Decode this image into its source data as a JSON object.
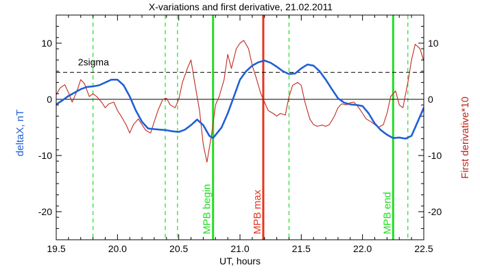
{
  "chart_data": {
    "type": "line",
    "title": "X-variations and first derivative, 21.02.2011",
    "xlabel": "UT, hours",
    "ylabel": "deltaX, nT",
    "y2label": "First derivative*10",
    "xlim": [
      19.5,
      22.5
    ],
    "ylim": [
      -25,
      15
    ],
    "x_ticks": [
      19.5,
      20.0,
      20.5,
      21.0,
      21.5,
      22.0,
      22.5
    ],
    "x_tick_labels": [
      "19.5",
      "20.0",
      "20.5",
      "21.0",
      "21.5",
      "22.0",
      "22.5"
    ],
    "y_ticks": [
      -20,
      -10,
      0,
      10
    ],
    "y_tick_labels": [
      "-20",
      "-10",
      "0",
      "10"
    ],
    "grid": false,
    "colors": {
      "deltaX": "#1f5fd6",
      "derivative": "#c0281b",
      "green_marker": "#22dd22",
      "red_marker": "#e8331c"
    },
    "sigma_level": {
      "label": "2sigma",
      "value": 4.8
    },
    "zero_line": 0,
    "series": [
      {
        "name": "deltaX, nT",
        "role": "deltaX",
        "x": [
          19.5,
          19.55,
          19.6,
          19.65,
          19.7,
          19.75,
          19.8,
          19.85,
          19.9,
          19.95,
          20.0,
          20.05,
          20.1,
          20.15,
          20.2,
          20.25,
          20.3,
          20.35,
          20.4,
          20.45,
          20.5,
          20.55,
          20.6,
          20.65,
          20.7,
          20.75,
          20.78,
          20.85,
          20.9,
          20.95,
          21.0,
          21.05,
          21.1,
          21.15,
          21.2,
          21.25,
          21.3,
          21.35,
          21.4,
          21.45,
          21.5,
          21.55,
          21.6,
          21.65,
          21.7,
          21.75,
          21.8,
          21.85,
          21.9,
          21.95,
          22.0,
          22.05,
          22.1,
          22.15,
          22.2,
          22.25,
          22.3,
          22.35,
          22.4,
          22.45,
          22.5
        ],
        "y": [
          -0.9,
          -0.2,
          0.6,
          1.2,
          1.8,
          2.2,
          2.3,
          2.5,
          3.0,
          3.5,
          3.5,
          2.5,
          0.5,
          -2.0,
          -4.0,
          -5.2,
          -5.3,
          -5.4,
          -5.5,
          -5.7,
          -5.8,
          -5.4,
          -4.6,
          -3.6,
          -4.6,
          -6.5,
          -6.9,
          -5.0,
          -2.5,
          0.5,
          3.5,
          5.0,
          6.0,
          6.6,
          6.9,
          6.5,
          5.8,
          5.0,
          4.5,
          4.6,
          5.5,
          6.2,
          6.0,
          5.0,
          3.5,
          1.8,
          0.2,
          -0.6,
          -0.9,
          -1.0,
          -1.2,
          -2.5,
          -4.3,
          -5.5,
          -6.3,
          -6.9,
          -6.8,
          -7.0,
          -6.5,
          -4.0,
          -1.5
        ]
      },
      {
        "name": "First derivative*10",
        "role": "derivative",
        "x": [
          19.5,
          19.53,
          19.57,
          19.6,
          19.63,
          19.67,
          19.7,
          19.73,
          19.77,
          19.8,
          19.83,
          19.87,
          19.9,
          19.93,
          19.97,
          20.0,
          20.03,
          20.07,
          20.1,
          20.13,
          20.17,
          20.2,
          20.23,
          20.27,
          20.3,
          20.33,
          20.37,
          20.4,
          20.43,
          20.47,
          20.5,
          20.53,
          20.57,
          20.6,
          20.63,
          20.67,
          20.7,
          20.73,
          20.77,
          20.8,
          20.83,
          20.87,
          20.9,
          20.93,
          20.97,
          21.0,
          21.03,
          21.07,
          21.1,
          21.13,
          21.17,
          21.2,
          21.23,
          21.27,
          21.3,
          21.33,
          21.37,
          21.4,
          21.43,
          21.47,
          21.5,
          21.53,
          21.57,
          21.6,
          21.63,
          21.67,
          21.7,
          21.73,
          21.77,
          21.8,
          21.83,
          21.87,
          21.9,
          21.93,
          21.97,
          22.0,
          22.03,
          22.07,
          22.1,
          22.13,
          22.17,
          22.2,
          22.23,
          22.27,
          22.3,
          22.33,
          22.37,
          22.4,
          22.43,
          22.47,
          22.5
        ],
        "y": [
          0.8,
          2.0,
          2.6,
          1.2,
          -0.5,
          1.5,
          3.5,
          2.8,
          0.5,
          1.0,
          0.5,
          -0.5,
          -1.5,
          -0.8,
          -0.5,
          -2.0,
          -3.0,
          -4.5,
          -6.0,
          -4.5,
          -3.5,
          -4.5,
          -5.5,
          -6.0,
          -4.0,
          -2.0,
          0.0,
          0.2,
          -1.0,
          -1.5,
          0.0,
          3.0,
          5.5,
          7.0,
          3.0,
          -2.0,
          -8.0,
          -11.2,
          -6.0,
          -1.0,
          0.5,
          3.5,
          8.0,
          5.5,
          9.0,
          10.0,
          10.5,
          9.0,
          6.0,
          4.0,
          1.0,
          -0.5,
          -2.0,
          -2.5,
          -3.0,
          -2.5,
          -2.8,
          0.5,
          2.5,
          3.0,
          2.5,
          -0.5,
          -3.5,
          -4.5,
          -4.8,
          -4.6,
          -4.8,
          -4.5,
          -3.0,
          -1.5,
          -0.8,
          -1.0,
          -0.6,
          -0.5,
          -1.5,
          -2.5,
          -3.5,
          -4.0,
          -4.5,
          -5.0,
          -4.5,
          -2.5,
          0.5,
          1.5,
          -1.0,
          -1.5,
          3.0,
          7.0,
          9.8,
          9.0,
          6.8
        ]
      }
    ],
    "vertical_markers": [
      {
        "x": 19.8,
        "style": "dashed",
        "color_role": "green_marker",
        "label": ""
      },
      {
        "x": 20.39,
        "style": "dashed",
        "color_role": "green_marker",
        "label": ""
      },
      {
        "x": 20.49,
        "style": "dashed",
        "color_role": "green_marker",
        "label": ""
      },
      {
        "x": 20.78,
        "style": "solid",
        "color_role": "green_marker",
        "label": "MPB begin"
      },
      {
        "x": 21.19,
        "style": "solid",
        "color_role": "red_marker",
        "label": "MPB max"
      },
      {
        "x": 21.4,
        "style": "dashed",
        "color_role": "green_marker",
        "label": ""
      },
      {
        "x": 22.25,
        "style": "solid",
        "color_role": "green_marker",
        "label": "MPB end"
      },
      {
        "x": 22.37,
        "style": "dashed",
        "color_role": "green_marker",
        "label": ""
      }
    ]
  }
}
